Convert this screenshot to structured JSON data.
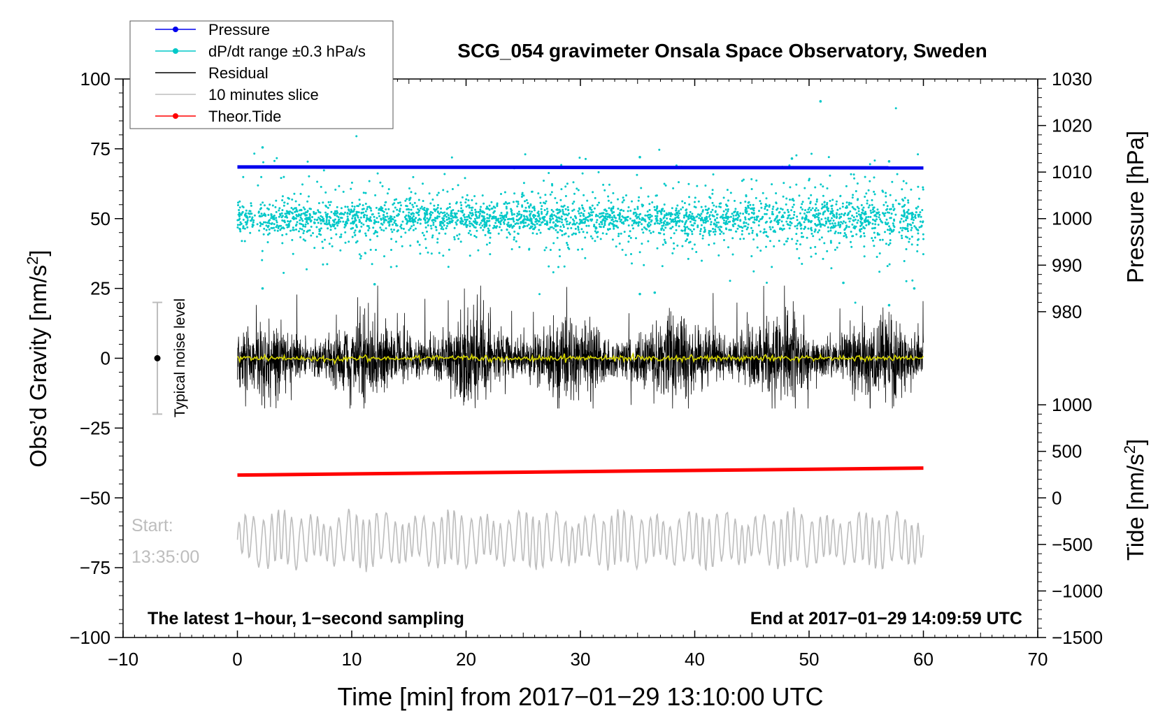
{
  "chart_data": {
    "type": "line",
    "title": "SCG_054 gravimeter Onsala Space Observatory, Sweden",
    "xlabel": "Time [min] from 2017−01−29 13:10:00 UTC",
    "ylabel_left": "Obs’d Gravity [nm/s",
    "ylabel_left_sup": "2",
    "ylabel_left_end": "]",
    "ylabel_right_pressure": "Pressure [hPa]",
    "ylabel_right_tide": "Tide [nm/s",
    "ylabel_right_tide_sup": "2",
    "ylabel_right_tide_end": "]",
    "xlim": [
      -10,
      70
    ],
    "ylim_left": [
      -100,
      100
    ],
    "x_ticks": [
      -10,
      0,
      10,
      20,
      30,
      40,
      50,
      60,
      70
    ],
    "x_tick_labels": [
      "−10",
      "0",
      "10",
      "20",
      "30",
      "40",
      "50",
      "60",
      "70"
    ],
    "y_ticks_left": [
      100,
      75,
      50,
      25,
      0,
      -25,
      -50,
      -75,
      -100
    ],
    "y_tick_labels_left": [
      "100",
      "75",
      "50",
      "25",
      "0",
      "−25",
      "−50",
      "−75",
      "−100"
    ],
    "pressure_axis": {
      "ticks": [
        1030,
        1020,
        1010,
        1000,
        990,
        980
      ],
      "tick_labels": [
        "1030",
        "1020",
        "1010",
        "1000",
        "990",
        "980"
      ],
      "map": {
        "value_a": 1030,
        "gravity_a": 100,
        "value_b": 980,
        "gravity_b": 16.67
      }
    },
    "tide_axis": {
      "ticks": [
        1000,
        500,
        0,
        -500,
        -1000,
        -1500
      ],
      "tick_labels": [
        "1000",
        "500",
        "0",
        "−500",
        "−1000",
        "−1500"
      ],
      "map": {
        "value_a": 1000,
        "gravity_a": -16.67,
        "value_b": -1500,
        "gravity_b": -100
      }
    },
    "legend": {
      "position": "top-left",
      "entries": [
        {
          "label": "Pressure",
          "color": "#0000ee",
          "marker": true
        },
        {
          "label": "dP/dt range ±0.3 hPa/s",
          "color": "#00c8c8",
          "marker": true
        },
        {
          "label": "Residual",
          "color": "#000000",
          "marker": false
        },
        {
          "label": "10 minutes slice",
          "color": "#bdbdbd",
          "marker": false
        },
        {
          "label": "Theor.Tide",
          "color": "#ff0000",
          "marker": true
        }
      ]
    },
    "series": [
      {
        "name": "Pressure",
        "color": "#0000ee",
        "unit": "hPa",
        "x_range": [
          0,
          60
        ],
        "start": 1011.1,
        "end": 1010.9
      },
      {
        "name": "dP/dt range ±0.3 hPa/s",
        "color": "#00c8c8",
        "x_range": [
          0,
          60
        ],
        "center_gravity": 50,
        "typical_spread": 6,
        "outliers_gravity": [
          75.5,
          92.0,
          72.0,
          71.5,
          70.5,
          25.0,
          26.5,
          23.0,
          23.5,
          27.0,
          19.0,
          25.0
        ]
      },
      {
        "name": "Residual",
        "color": "#000000",
        "x_range": [
          0,
          60
        ],
        "center_gravity": 0,
        "typical_range": [
          -18,
          26
        ]
      },
      {
        "name": "Residual smoothed",
        "color": "#d6d600",
        "x_range": [
          0,
          60
        ],
        "center_gravity": 0
      },
      {
        "name": "Theor.Tide",
        "color": "#ff0000",
        "unit": "nm/s2",
        "x_range": [
          0,
          60
        ],
        "start": 245,
        "end": 320
      },
      {
        "name": "10 minutes slice",
        "color": "#bdbdbd",
        "x_range": [
          0,
          60
        ],
        "center_gravity": -65,
        "typical_range": [
          -78,
          -45
        ]
      }
    ],
    "noise_bar": {
      "x": -7,
      "center": 0,
      "low": -20,
      "high": 20,
      "label": "Typical noise level"
    },
    "annotations": {
      "start_label": "Start:",
      "start_time": "13:35:00",
      "bottom_left": "The latest 1−hour, 1−second sampling",
      "bottom_right": "End at 2017−01−29 14:09:59 UTC"
    },
    "colors": {
      "pressure": "#0000ee",
      "dpdt": "#00c8c8",
      "residual": "#000000",
      "smooth": "#d6d600",
      "tide": "#ff0000",
      "slice": "#bdbdbd",
      "noise_bar": "#bdbdbd"
    }
  }
}
